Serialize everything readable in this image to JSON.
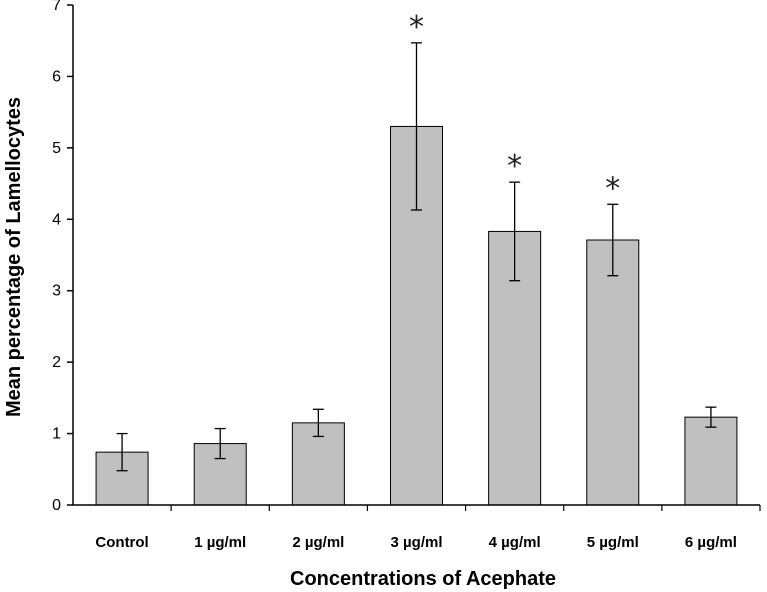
{
  "chart_data": {
    "type": "bar",
    "title": "",
    "xlabel": "Concentrations of Acephate",
    "ylabel": "Mean percentage of Lamellocytes",
    "ylim": [
      0,
      7
    ],
    "yticks": [
      "0",
      "1",
      "2",
      "3",
      "4",
      "5",
      "6",
      "7"
    ],
    "categories": [
      "Control",
      "1 µg/ml",
      "2 µg/ml",
      "3 µg/ml",
      "4 µg/ml",
      "5 µg/ml",
      "6 µg/ml"
    ],
    "values": [
      0.74,
      0.86,
      1.15,
      5.3,
      3.83,
      3.71,
      1.23
    ],
    "error_bars": [
      0.26,
      0.21,
      0.19,
      1.17,
      0.69,
      0.5,
      0.14
    ],
    "significance_markers": [
      "",
      "",
      "",
      "*",
      "*",
      "*",
      ""
    ],
    "bar_color": "#c0c0c0",
    "bar_edge_color": "#000000",
    "grid": false
  }
}
